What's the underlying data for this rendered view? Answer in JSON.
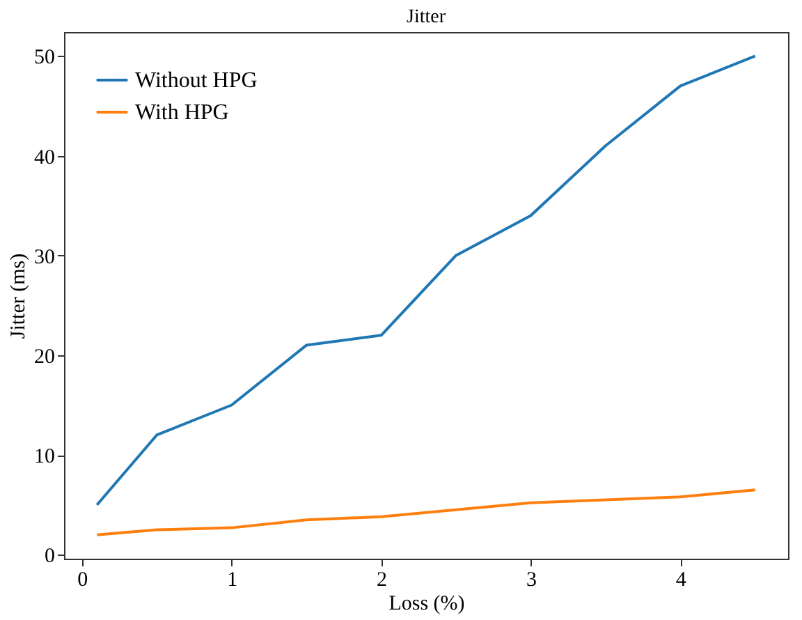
{
  "chart_data": {
    "type": "line",
    "title": "Jitter",
    "xlabel": "Loss (%)",
    "ylabel": "Jitter (ms)",
    "x": [
      0.1,
      0.5,
      1,
      1.5,
      2,
      2.5,
      3,
      3.5,
      4,
      4.5
    ],
    "series": [
      {
        "name": "Without HPG",
        "color": "#1f77b4",
        "values": [
          5,
          12,
          15,
          21,
          22,
          30,
          34,
          41,
          47,
          50
        ]
      },
      {
        "name": "With HPG",
        "color": "#ff7f0e",
        "values": [
          2,
          2.5,
          2.7,
          3.5,
          3.8,
          4.5,
          5.2,
          5.5,
          5.8,
          6.5
        ]
      }
    ],
    "xlim": [
      -0.12,
      4.72
    ],
    "ylim": [
      -0.4,
      52.4
    ],
    "xticks": [
      0,
      1,
      2,
      3,
      4
    ],
    "yticks": [
      0,
      10,
      20,
      30,
      40,
      50
    ],
    "grid": false,
    "legend": "top left",
    "marker": "none",
    "line_style": "solid"
  }
}
